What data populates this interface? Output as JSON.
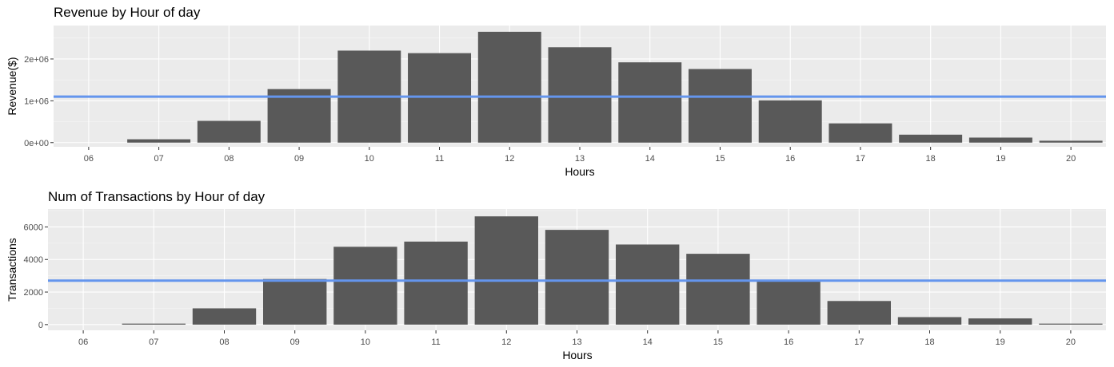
{
  "chart_data": [
    {
      "type": "bar",
      "title": "Revenue by Hour of day",
      "xlabel": "Hours",
      "ylabel": "Revenue($)",
      "categories": [
        "06",
        "07",
        "08",
        "09",
        "10",
        "11",
        "12",
        "13",
        "14",
        "15",
        "16",
        "17",
        "18",
        "19",
        "20"
      ],
      "values": [
        0,
        80000,
        520000,
        1280000,
        2200000,
        2140000,
        2650000,
        2280000,
        1920000,
        1760000,
        1010000,
        460000,
        190000,
        120000,
        45000
      ],
      "ylim": [
        -100000,
        2800000
      ],
      "y_ticks": [
        0,
        1000000,
        2000000
      ],
      "y_tick_labels": [
        "0e+00",
        "1e+06",
        "2e+06"
      ],
      "reference_line": {
        "value": 1100000,
        "color": "#6495ED"
      },
      "bar_color": "#595959",
      "grid": true
    },
    {
      "type": "bar",
      "title": "Num of Transactions by Hour of day",
      "xlabel": "Hours",
      "ylabel": "Transactions",
      "categories": [
        "06",
        "07",
        "08",
        "09",
        "10",
        "11",
        "12",
        "13",
        "14",
        "15",
        "16",
        "17",
        "18",
        "19",
        "20"
      ],
      "values": [
        0,
        60,
        1000,
        2800,
        4780,
        5100,
        6650,
        5820,
        4920,
        4350,
        2700,
        1450,
        460,
        380,
        60
      ],
      "ylim": [
        -350,
        7100
      ],
      "y_ticks": [
        0,
        2000,
        4000,
        6000
      ],
      "y_tick_labels": [
        "0",
        "2000",
        "4000",
        "6000"
      ],
      "reference_line": {
        "value": 2700,
        "color": "#6495ED"
      },
      "bar_color": "#595959",
      "grid": true
    }
  ]
}
